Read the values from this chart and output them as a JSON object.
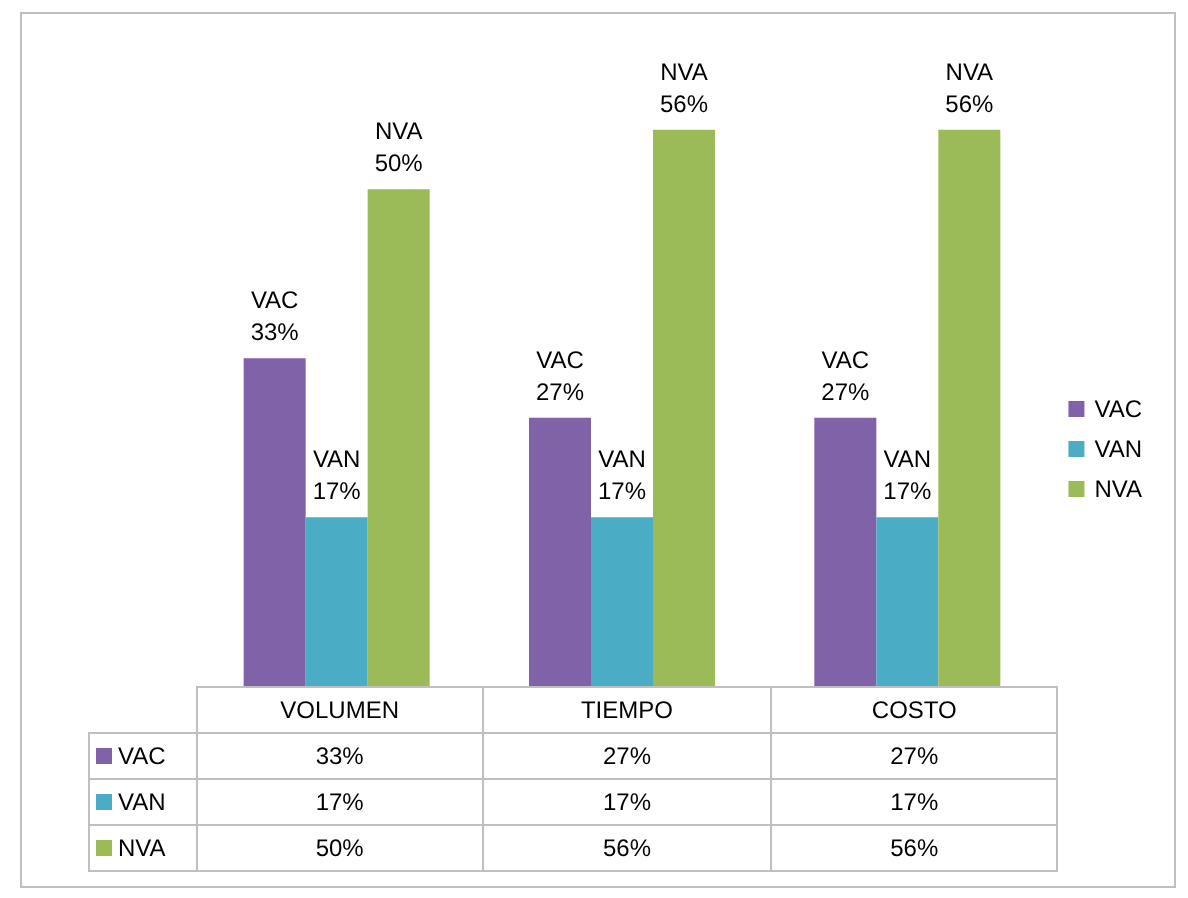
{
  "chart_data": {
    "type": "bar",
    "categories": [
      "VOLUMEN",
      "TIEMPO",
      "COSTO"
    ],
    "series": [
      {
        "name": "VAC",
        "color": "#7f62a8",
        "values": [
          33,
          27,
          27
        ],
        "value_labels": [
          "33%",
          "27%",
          "27%"
        ]
      },
      {
        "name": "VAN",
        "color": "#4bacc6",
        "values": [
          17,
          17,
          17
        ],
        "value_labels": [
          "17%",
          "17%",
          "17%"
        ]
      },
      {
        "name": "NVA",
        "color": "#9bbb59",
        "values": [
          50,
          56,
          56
        ],
        "value_labels": [
          "50%",
          "56%",
          "56%"
        ]
      }
    ],
    "legend": "right"
  }
}
